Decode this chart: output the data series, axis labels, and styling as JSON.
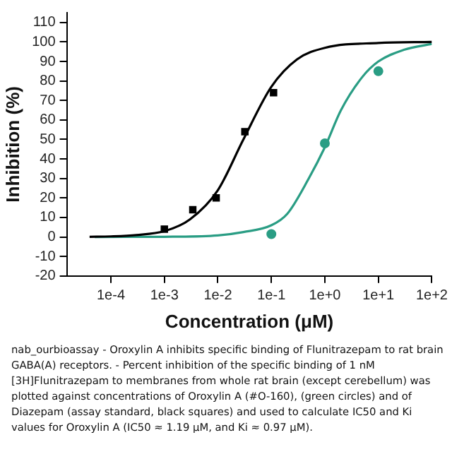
{
  "chart_data": {
    "type": "scatter",
    "xlabel": "Concentration (μM)",
    "ylabel": "Inhibition (%)",
    "log": "x",
    "xlim": [
      1.5e-05,
      100
    ],
    "ylim": [
      -20,
      115
    ],
    "xticks": [
      {
        "value": 0.0001,
        "label": "1e-4"
      },
      {
        "value": 0.001,
        "label": "1e-3"
      },
      {
        "value": 0.01,
        "label": "1e-2"
      },
      {
        "value": 0.1,
        "label": "1e-1"
      },
      {
        "value": 1,
        "label": "1e+0"
      },
      {
        "value": 10,
        "label": "1e+1"
      },
      {
        "value": 100,
        "label": "1e+2"
      }
    ],
    "yticks": [
      -20,
      -10,
      0,
      10,
      20,
      30,
      40,
      50,
      60,
      70,
      80,
      90,
      100,
      110
    ],
    "grid": false,
    "legend": false,
    "series": [
      {
        "type": "line",
        "color": "#000000",
        "marker": "none",
        "x": [
          4e-05,
          0.0001,
          0.0003,
          0.001,
          0.003,
          0.01,
          0.03,
          0.1,
          0.3,
          1,
          10,
          100
        ],
        "values": [
          0.1,
          0.3,
          1,
          3,
          9,
          24,
          50,
          77,
          91,
          97,
          99.5,
          100
        ]
      },
      {
        "type": "line",
        "color": "#2a9d84",
        "marker": "none",
        "x": [
          5e-05,
          0.001,
          0.01,
          0.03,
          0.1,
          0.2,
          0.5,
          1,
          2,
          5,
          10,
          30,
          100
        ],
        "values": [
          0,
          0.1,
          0.8,
          2.5,
          6,
          12,
          30,
          46,
          65,
          82,
          90,
          96,
          99
        ]
      },
      {
        "type": "scatter",
        "color": "#000000",
        "marker": "square",
        "x": [
          0.001,
          0.0034,
          0.0093,
          0.032,
          0.11
        ],
        "values": [
          4,
          14,
          20,
          54,
          74
        ]
      },
      {
        "type": "scatter",
        "color": "#2a9d84",
        "marker": "circle",
        "x": [
          0.1,
          1,
          10
        ],
        "values": [
          1.5,
          48,
          85
        ]
      }
    ],
    "annotations": [
      "nab_ourbioassay - Oroxylin A inhibits specific binding of Flunitrazepam to rat brain GABA(A) receptors. - Percent inhibition of the specific binding of 1 nM [3H]Flunitrazepam to membranes from whole rat brain (except cerebellum) was plotted against concentrations of Oroxylin A (#O-160), (green circles) and of Diazepam (assay standard, black squares) and used to calculate IC50 and Ki values for Oroxylin A (IC50 ≈ 1.19 μM, and Ki ≈ 0.97 μM)."
    ]
  }
}
